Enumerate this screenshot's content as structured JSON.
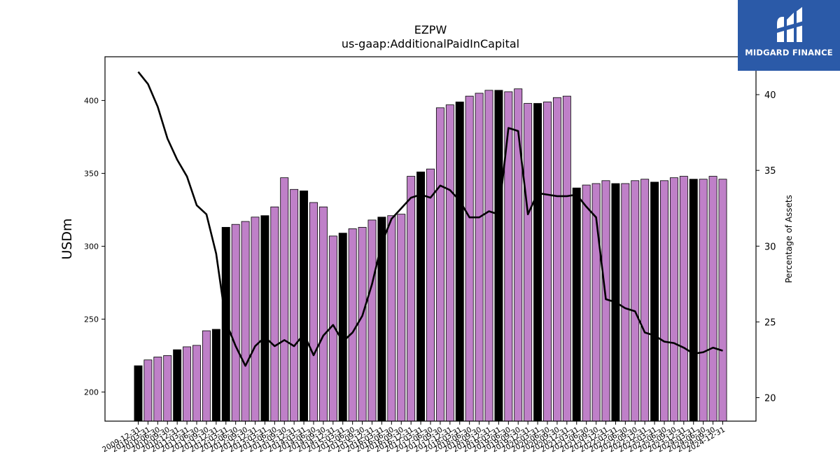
{
  "chart_data": {
    "type": "bar",
    "title": "EZPW",
    "subtitle": "us-gaap:AdditionalPaidInCapital",
    "ylabel": "USDm",
    "y2label": "Percentage of Assets",
    "ylim": [
      180,
      430
    ],
    "y2lim": [
      18.45,
      42.5
    ],
    "yticks": [
      200,
      250,
      300,
      350,
      400
    ],
    "y2ticks": [
      20,
      25,
      30,
      35,
      40
    ],
    "colors": {
      "annual": "#000000",
      "quarterly": "#bf80c8",
      "line": "#000000"
    },
    "categories": [
      "2009-12-31",
      "2010-03-31",
      "2010-06-30",
      "2010-09-30",
      "2010-12-31",
      "2011-03-31",
      "2011-06-30",
      "2011-09-30",
      "2011-12-31",
      "2012-03-31",
      "2012-06-30",
      "2012-09-30",
      "2012-12-31",
      "2013-03-31",
      "2013-06-30",
      "2013-09-30",
      "2013-12-31",
      "2014-03-31",
      "2014-06-30",
      "2014-09-30",
      "2014-12-31",
      "2015-03-31",
      "2015-06-30",
      "2015-09-30",
      "2015-12-31",
      "2016-03-31",
      "2016-06-30",
      "2016-09-30",
      "2016-12-31",
      "2017-03-31",
      "2017-06-30",
      "2017-09-30",
      "2017-12-31",
      "2018-03-31",
      "2018-06-30",
      "2018-09-30",
      "2018-12-31",
      "2019-03-31",
      "2019-06-30",
      "2019-09-30",
      "2019-12-31",
      "2020-03-31",
      "2020-06-30",
      "2020-09-30",
      "2020-12-31",
      "2021-03-31",
      "2021-06-30",
      "2021-09-30",
      "2021-12-31",
      "2022-03-31",
      "2022-06-30",
      "2022-09-30",
      "2022-12-31",
      "2023-03-31",
      "2023-06-30",
      "2023-09-30",
      "2023-12-31",
      "2024-03-31",
      "2024-06-30",
      "2024-09-30",
      "2024-12-31"
    ],
    "series": [
      {
        "kind": "bar",
        "values": [
          218,
          222,
          224,
          225,
          229,
          231,
          232,
          242,
          243,
          313,
          315,
          317,
          320,
          321,
          327,
          347,
          339,
          338,
          330,
          327,
          307,
          309,
          312,
          313,
          318,
          320,
          321,
          322,
          348,
          351,
          353,
          395,
          397,
          399,
          403,
          405,
          407,
          407,
          406,
          408,
          398,
          398,
          399,
          402,
          403,
          340,
          342,
          343,
          345,
          343,
          343,
          345,
          346,
          344,
          345,
          347,
          348,
          346,
          346,
          348,
          346
        ],
        "annual_flags": [
          1,
          0,
          0,
          0,
          1,
          0,
          0,
          0,
          1,
          1,
          0,
          0,
          0,
          1,
          0,
          0,
          0,
          1,
          0,
          0,
          0,
          1,
          0,
          0,
          0,
          1,
          0,
          0,
          0,
          1,
          0,
          0,
          0,
          1,
          0,
          0,
          0,
          1,
          0,
          0,
          0,
          1,
          0,
          0,
          0,
          1,
          0,
          0,
          0,
          1,
          0,
          0,
          0,
          1,
          0,
          0,
          0,
          1,
          0,
          0,
          0
        ]
      },
      {
        "kind": "line",
        "axis": "right",
        "values": [
          41.5,
          40.7,
          39.2,
          37.1,
          35.7,
          34.6,
          32.7,
          32.1,
          29.5,
          25.0,
          23.4,
          22.1,
          23.4,
          24.0,
          23.4,
          23.8,
          23.4,
          24.2,
          22.8,
          24.1,
          24.8,
          23.7,
          24.3,
          25.4,
          27.5,
          30.2,
          31.8,
          32.5,
          33.2,
          33.4,
          33.2,
          34.0,
          33.7,
          33.0,
          31.9,
          31.9,
          32.3,
          32.1,
          37.8,
          37.6,
          32.1,
          33.5,
          33.4,
          33.3,
          33.3,
          33.4,
          32.6,
          31.9,
          26.5,
          26.3,
          25.9,
          25.7,
          24.3,
          24.1,
          23.7,
          23.6,
          23.3,
          22.9,
          23.0,
          23.3,
          23.1
        ]
      }
    ],
    "xtick_labels": [
      "2009-12-31",
      "2010-03-31",
      "2010-06-30",
      "2010-09-30",
      "2010-12-31",
      "2011-03-31",
      "2011-06-30",
      "2011-09-30",
      "2011-12-31",
      "2012-03-31",
      "2012-06-30",
      "2012-09-30",
      "2012-12-31",
      "2013-03-31",
      "2013-06-30",
      "2013-09-30",
      "2013-12-31",
      "2014-03-31",
      "2014-06-30",
      "2014-09-30",
      "2014-12-31",
      "2015-03-31",
      "2015-06-30",
      "2015-09-30",
      "2015-12-31",
      "2016-03-31",
      "2016-06-30",
      "2016-09-30",
      "2016-12-31",
      "2017-03-31",
      "2017-06-30",
      "2017-09-30",
      "2017-12-31",
      "2018-03-31",
      "2018-06-30",
      "2018-09-30",
      "2018-12-31",
      "2019-03-31",
      "2019-06-30",
      "2019-09-30",
      "2019-12-31",
      "2020-03-31",
      "2020-06-30",
      "2020-09-30",
      "2020-12-31",
      "2021-03-31",
      "2021-06-30",
      "2021-09-30",
      "2021-12-31",
      "2022-03-31",
      "2022-06-30",
      "2022-09-30",
      "2022-12-31",
      "2023-03-31",
      "2023-06-30",
      "2023-09-30",
      "2023-12-31",
      "2024-03-31",
      "2024-06-30",
      "2024-09-30",
      "2024-12-31"
    ]
  },
  "logo": {
    "text": "MIDGARD FINANCE",
    "background": "#2b5aa8"
  }
}
